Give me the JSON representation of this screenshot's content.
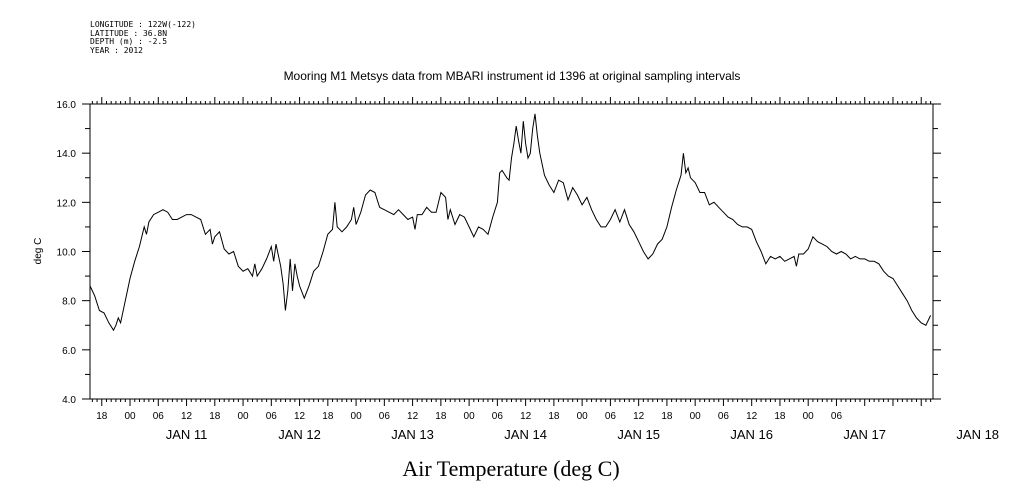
{
  "header": {
    "longitude": "LONGITUDE : 122W(-122)",
    "latitude": "LATITUDE : 36.8N",
    "depth": "DEPTH (m) : -2.5",
    "year": "YEAR : 2012"
  },
  "chart_data": {
    "type": "line",
    "title": "Mooring M1 Metsys data from MBARI instrument id 1396 at original sampling intervals",
    "xlabel": "Air Temperature (deg C)",
    "ylabel": "deg C",
    "ylim": [
      4.0,
      16.0
    ],
    "yticks": [
      "4.0",
      "6.0",
      "8.0",
      "10.0",
      "12.0",
      "14.0",
      "16.0"
    ],
    "xlim_hours": [
      -8.5,
      170.5
    ],
    "hour_ticks": [
      "18",
      "00",
      "06",
      "12",
      "18",
      "00",
      "06",
      "12",
      "18",
      "00",
      "06",
      "12",
      "18",
      "00",
      "06",
      "12",
      "18",
      "00",
      "06",
      "12",
      "18",
      "00",
      "06",
      "12",
      "18",
      "00",
      "06"
    ],
    "day_labels": [
      "JAN 11",
      "JAN 12",
      "JAN 13",
      "JAN 14",
      "JAN 15",
      "JAN 16",
      "JAN 17",
      "JAN 18"
    ],
    "grid": false,
    "series": [
      {
        "values": [
          [
            -8.5,
            8.6
          ],
          [
            -7.5,
            8.2
          ],
          [
            -6.5,
            7.6
          ],
          [
            -5.5,
            7.5
          ],
          [
            -4.5,
            7.1
          ],
          [
            -3.5,
            6.8
          ],
          [
            -3,
            7.0
          ],
          [
            -2.5,
            7.3
          ],
          [
            -2,
            7.1
          ],
          [
            -1,
            8.0
          ],
          [
            0,
            8.9
          ],
          [
            1,
            9.6
          ],
          [
            2,
            10.2
          ],
          [
            3,
            11.0
          ],
          [
            3.5,
            10.7
          ],
          [
            4,
            11.2
          ],
          [
            5,
            11.5
          ],
          [
            6,
            11.6
          ],
          [
            7,
            11.7
          ],
          [
            8,
            11.6
          ],
          [
            9,
            11.3
          ],
          [
            10,
            11.3
          ],
          [
            11,
            11.4
          ],
          [
            12,
            11.5
          ],
          [
            13,
            11.5
          ],
          [
            14,
            11.4
          ],
          [
            15,
            11.3
          ],
          [
            16,
            10.7
          ],
          [
            17,
            10.9
          ],
          [
            17.5,
            10.3
          ],
          [
            18,
            10.6
          ],
          [
            19,
            10.8
          ],
          [
            20,
            10.1
          ],
          [
            21,
            9.9
          ],
          [
            22,
            10.0
          ],
          [
            23,
            9.4
          ],
          [
            24,
            9.2
          ],
          [
            25,
            9.3
          ],
          [
            26,
            9.0
          ],
          [
            26.5,
            9.5
          ],
          [
            27,
            9.0
          ],
          [
            28,
            9.3
          ],
          [
            29,
            9.7
          ],
          [
            30,
            10.2
          ],
          [
            30.5,
            9.6
          ],
          [
            31,
            10.3
          ],
          [
            32,
            9.4
          ],
          [
            32.5,
            8.7
          ],
          [
            33,
            7.6
          ],
          [
            33.5,
            8.4
          ],
          [
            34,
            9.7
          ],
          [
            34.5,
            8.4
          ],
          [
            35,
            9.5
          ],
          [
            35.5,
            9.0
          ],
          [
            36,
            8.6
          ],
          [
            37,
            8.1
          ],
          [
            38,
            8.6
          ],
          [
            39,
            9.2
          ],
          [
            40,
            9.4
          ],
          [
            41,
            10.0
          ],
          [
            42,
            10.7
          ],
          [
            43,
            10.9
          ],
          [
            43.5,
            12.0
          ],
          [
            44,
            11.0
          ],
          [
            45,
            10.8
          ],
          [
            46,
            11.0
          ],
          [
            47,
            11.3
          ],
          [
            47.5,
            11.8
          ],
          [
            48,
            11.1
          ],
          [
            49,
            11.6
          ],
          [
            50,
            12.3
          ],
          [
            51,
            12.5
          ],
          [
            52,
            12.4
          ],
          [
            53,
            11.8
          ],
          [
            54,
            11.7
          ],
          [
            55,
            11.6
          ],
          [
            56,
            11.5
          ],
          [
            57,
            11.7
          ],
          [
            58,
            11.5
          ],
          [
            59,
            11.3
          ],
          [
            60,
            11.4
          ],
          [
            60.5,
            10.9
          ],
          [
            61,
            11.5
          ],
          [
            62,
            11.5
          ],
          [
            63,
            11.8
          ],
          [
            64,
            11.6
          ],
          [
            65,
            11.6
          ],
          [
            66,
            12.4
          ],
          [
            67,
            12.2
          ],
          [
            67.5,
            11.3
          ],
          [
            68,
            11.7
          ],
          [
            69,
            11.1
          ],
          [
            70,
            11.5
          ],
          [
            71,
            11.4
          ],
          [
            72,
            11.0
          ],
          [
            73,
            10.6
          ],
          [
            74,
            11.0
          ],
          [
            75,
            10.9
          ],
          [
            76,
            10.7
          ],
          [
            77,
            11.4
          ],
          [
            78,
            12.0
          ],
          [
            78.5,
            13.2
          ],
          [
            79,
            13.3
          ],
          [
            80,
            13.0
          ],
          [
            80.5,
            12.9
          ],
          [
            81,
            13.8
          ],
          [
            81.5,
            14.4
          ],
          [
            82,
            15.1
          ],
          [
            82.5,
            14.5
          ],
          [
            83,
            14.0
          ],
          [
            83.5,
            15.3
          ],
          [
            84,
            14.4
          ],
          [
            84.5,
            13.8
          ],
          [
            85,
            14.0
          ],
          [
            85.5,
            15.0
          ],
          [
            86,
            15.6
          ],
          [
            86.5,
            14.7
          ],
          [
            87,
            14.0
          ],
          [
            88,
            13.1
          ],
          [
            89,
            12.7
          ],
          [
            90,
            12.4
          ],
          [
            91,
            12.9
          ],
          [
            92,
            12.8
          ],
          [
            93,
            12.1
          ],
          [
            94,
            12.6
          ],
          [
            95,
            12.3
          ],
          [
            96,
            11.9
          ],
          [
            97,
            12.2
          ],
          [
            98,
            11.7
          ],
          [
            99,
            11.3
          ],
          [
            100,
            11.0
          ],
          [
            101,
            11.0
          ],
          [
            102,
            11.3
          ],
          [
            103,
            11.7
          ],
          [
            104,
            11.2
          ],
          [
            105,
            11.7
          ],
          [
            106,
            11.1
          ],
          [
            107,
            10.8
          ],
          [
            108,
            10.4
          ],
          [
            109,
            10.0
          ],
          [
            110,
            9.7
          ],
          [
            111,
            9.9
          ],
          [
            112,
            10.3
          ],
          [
            113,
            10.5
          ],
          [
            114,
            11.0
          ],
          [
            115,
            11.8
          ],
          [
            116,
            12.5
          ],
          [
            117,
            13.1
          ],
          [
            117.5,
            14.0
          ],
          [
            118,
            13.2
          ],
          [
            118.5,
            13.4
          ],
          [
            119,
            13.0
          ],
          [
            120,
            12.8
          ],
          [
            121,
            12.4
          ],
          [
            122,
            12.4
          ],
          [
            123,
            11.9
          ],
          [
            124,
            12.0
          ],
          [
            125,
            11.8
          ],
          [
            126,
            11.6
          ],
          [
            127,
            11.4
          ],
          [
            128,
            11.3
          ],
          [
            129,
            11.1
          ],
          [
            130,
            11.0
          ],
          [
            131,
            11.0
          ],
          [
            132,
            10.9
          ],
          [
            133,
            10.4
          ],
          [
            134,
            10.0
          ],
          [
            135,
            9.5
          ],
          [
            136,
            9.8
          ],
          [
            137,
            9.7
          ],
          [
            138,
            9.8
          ],
          [
            139,
            9.6
          ],
          [
            140,
            9.7
          ],
          [
            141,
            9.8
          ],
          [
            141.5,
            9.4
          ],
          [
            142,
            9.9
          ],
          [
            143,
            9.9
          ],
          [
            144,
            10.1
          ],
          [
            145,
            10.6
          ],
          [
            146,
            10.4
          ],
          [
            147,
            10.3
          ],
          [
            148,
            10.2
          ],
          [
            149,
            10.0
          ],
          [
            150,
            9.9
          ],
          [
            151,
            10.0
          ],
          [
            152,
            9.9
          ],
          [
            153,
            9.7
          ],
          [
            154,
            9.8
          ],
          [
            155,
            9.7
          ],
          [
            156,
            9.7
          ],
          [
            157,
            9.6
          ],
          [
            158,
            9.6
          ],
          [
            159,
            9.5
          ],
          [
            160,
            9.2
          ],
          [
            161,
            9.0
          ],
          [
            162,
            8.9
          ],
          [
            163,
            8.6
          ],
          [
            164,
            8.3
          ],
          [
            165,
            8.0
          ],
          [
            166,
            7.6
          ],
          [
            167,
            7.3
          ],
          [
            168,
            7.1
          ],
          [
            169,
            7.0
          ],
          [
            170,
            7.4
          ]
        ]
      }
    ]
  }
}
